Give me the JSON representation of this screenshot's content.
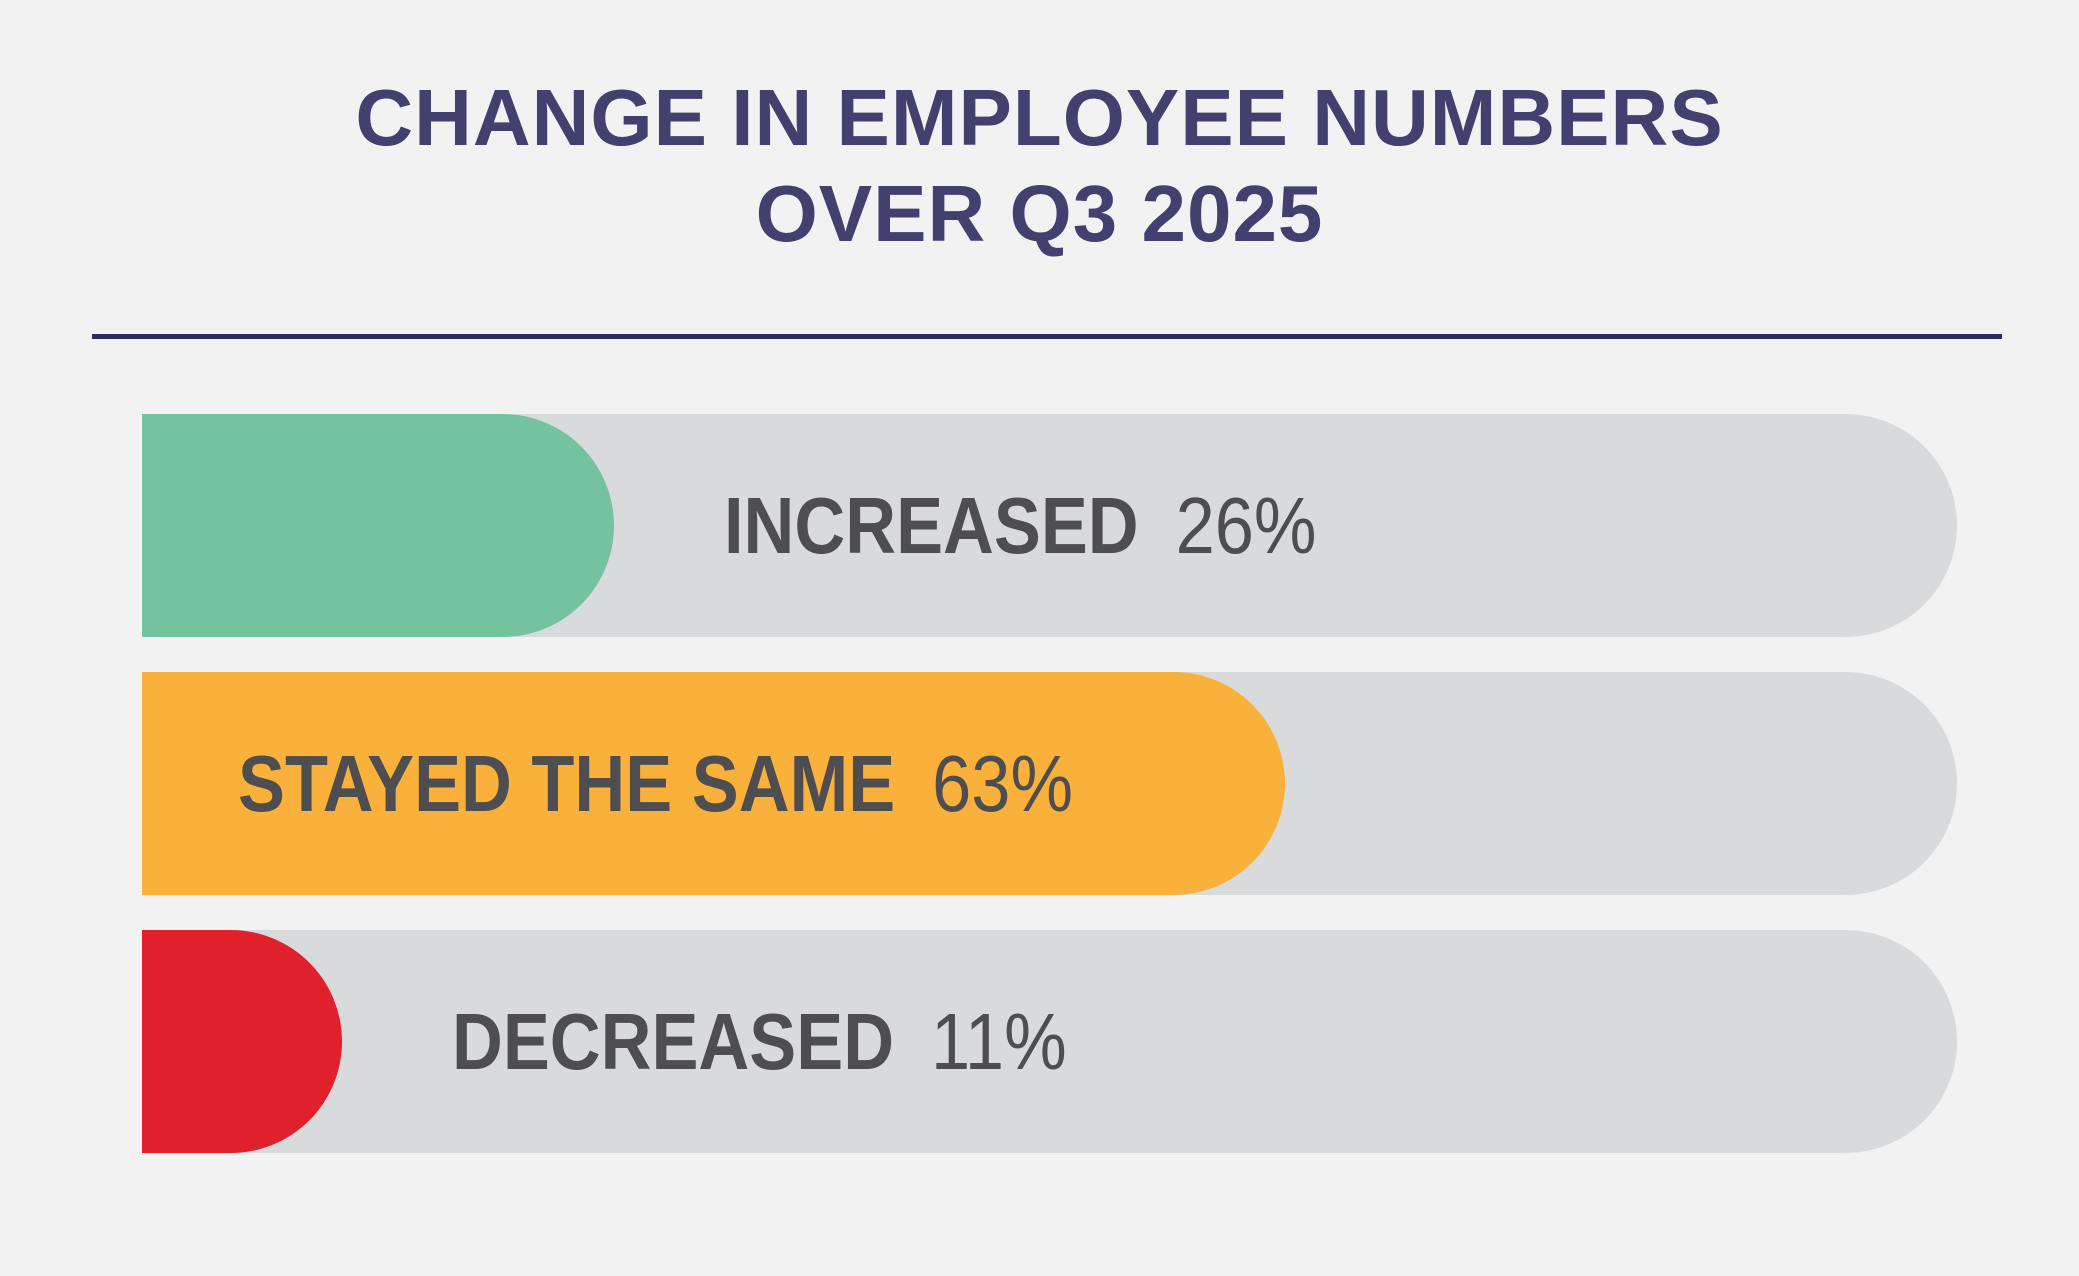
{
  "title": {
    "line1": "CHANGE IN EMPLOYEE NUMBERS",
    "line2": "OVER Q3 2025"
  },
  "chart_data": {
    "type": "bar",
    "orientation": "horizontal",
    "title": "CHANGE IN EMPLOYEE NUMBERS OVER Q3 2025",
    "categories": [
      "INCREASED",
      "STAYED THE SAME",
      "DECREASED"
    ],
    "values": [
      26,
      63,
      11
    ],
    "value_labels": [
      "26%",
      "63%",
      "11%"
    ],
    "unit": "%",
    "xlim": [
      0,
      100
    ],
    "grid": false,
    "legend_position": "none",
    "bar_colors": [
      "#74c39e",
      "#f9b13c",
      "#e0202a"
    ],
    "track_color": "#d9dadb"
  },
  "colors": {
    "background": "#f2f2f3",
    "title_text": "#434070",
    "divider": "#2c2a5e",
    "label_text": "#4e4e50"
  }
}
